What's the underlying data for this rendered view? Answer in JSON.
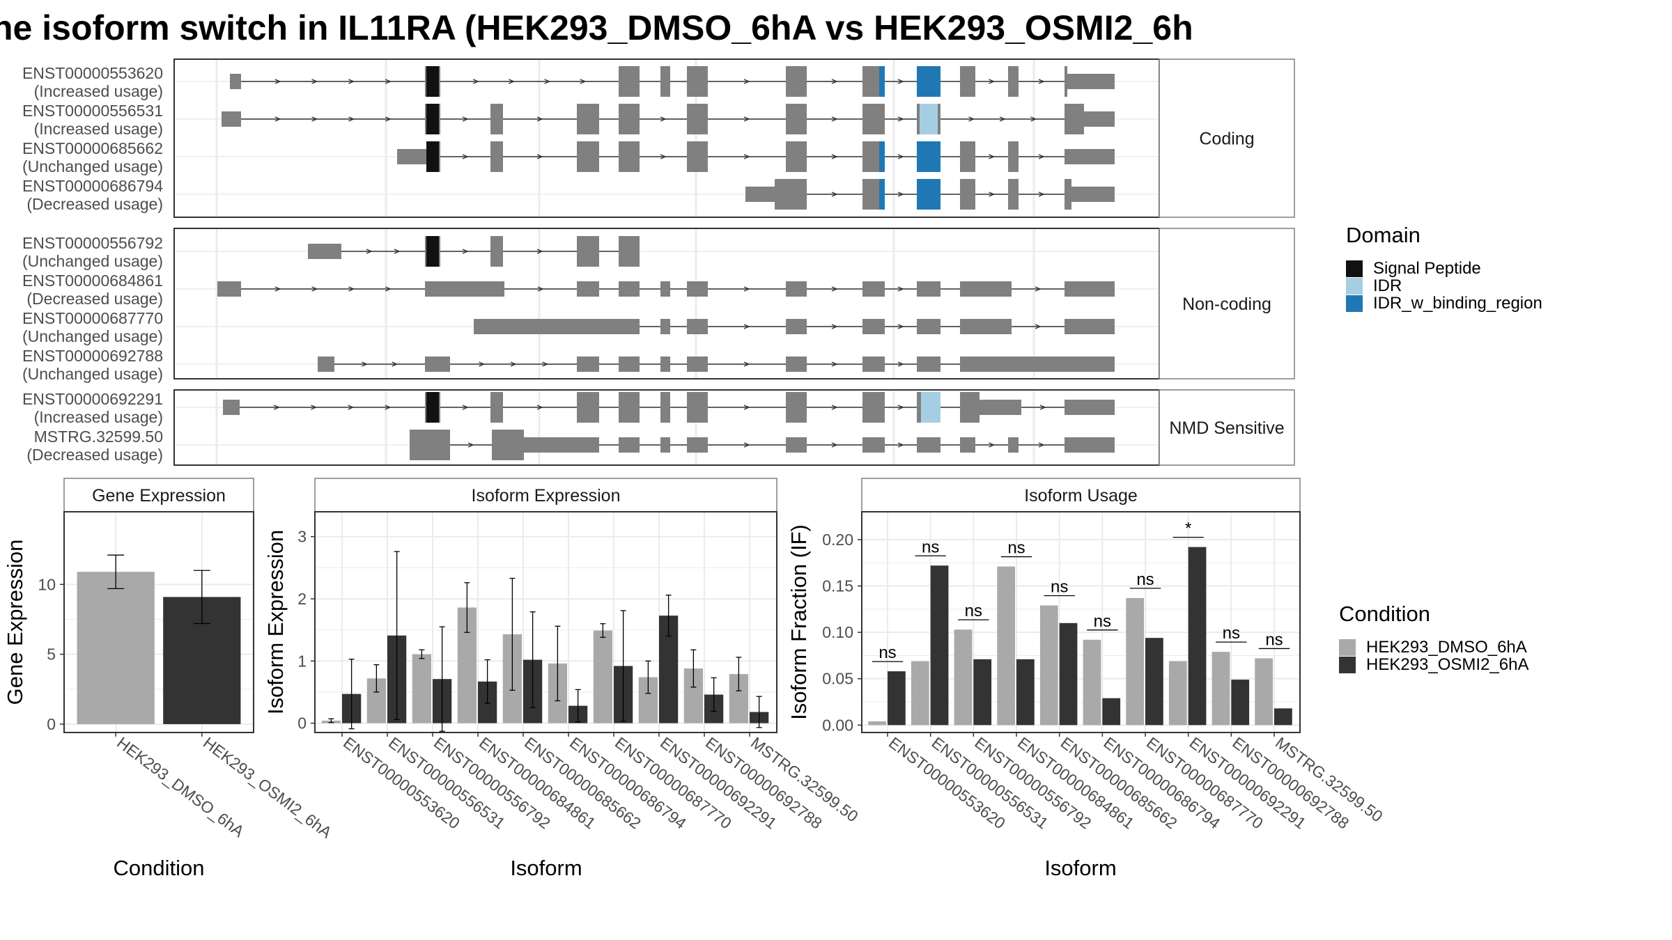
{
  "title": "he isoform switch in IL11RA (HEK293_DMSO_6hA vs HEK293_OSMI2_6h",
  "colors": {
    "exon": "#808080",
    "signal_peptide": "#111111",
    "idr": "#a6cee3",
    "idr_w_binding_region": "#1f78b4",
    "dmso": "#a9a9a9",
    "osmi2": "#333333",
    "grid": "#ebebeb",
    "strip_border": "#7f7f7f"
  },
  "legends": {
    "domain": {
      "title": "Domain",
      "items": [
        {
          "label": "Signal Peptide",
          "color_key": "signal_peptide"
        },
        {
          "label": "IDR",
          "color_key": "idr"
        },
        {
          "label": "IDR_w_binding_region",
          "color_key": "idr_w_binding_region"
        }
      ]
    },
    "condition": {
      "title": "Condition",
      "items": [
        {
          "label": "HEK293_DMSO_6hA",
          "color_key": "dmso"
        },
        {
          "label": "HEK293_OSMI2_6hA",
          "color_key": "osmi2"
        }
      ]
    }
  },
  "structure": {
    "panels": [
      {
        "strip": "Coding",
        "transcripts": [
          {
            "id": "ENST00000553620",
            "usage": "(Increased usage)"
          },
          {
            "id": "ENST00000556531",
            "usage": "(Increased usage)"
          },
          {
            "id": "ENST00000685662",
            "usage": "(Unchanged usage)"
          },
          {
            "id": "ENST00000686794",
            "usage": "(Decreased usage)"
          }
        ]
      },
      {
        "strip": "Non-coding",
        "transcripts": [
          {
            "id": "ENST00000556792",
            "usage": "(Unchanged usage)"
          },
          {
            "id": "ENST00000684861",
            "usage": "(Decreased usage)"
          },
          {
            "id": "ENST00000687770",
            "usage": "(Unchanged usage)"
          },
          {
            "id": "ENST00000692788",
            "usage": "(Unchanged usage)"
          }
        ]
      },
      {
        "strip": "NMD Sensitive",
        "transcripts": [
          {
            "id": "ENST00000692291",
            "usage": "(Increased usage)"
          },
          {
            "id": "MSTRG.32599.50",
            "usage": "(Decreased usage)"
          }
        ]
      }
    ]
  },
  "chart_data": [
    {
      "type": "bar",
      "strip": "Gene Expression",
      "xlabel": "Condition",
      "ylabel": "Gene Expression",
      "categories": [
        "HEK293_DMSO_6hA",
        "HEK293_OSMI2_6hA"
      ],
      "values": [
        10.9,
        9.1
      ],
      "errors": [
        1.2,
        1.9
      ],
      "ylim": [
        -0.6,
        15.2
      ],
      "yticks": [
        0,
        5,
        10
      ],
      "grid": true
    },
    {
      "type": "bar",
      "strip": "Isoform Expression",
      "xlabel": "Isoform",
      "ylabel": "Isoform Expression",
      "categories": [
        "ENST00000553620",
        "ENST00000556531",
        "ENST00000556792",
        "ENST00000684861",
        "ENST00000685662",
        "ENST00000686794",
        "ENST00000687770",
        "ENST00000692291",
        "ENST00000692788",
        "MSTRG.32599.50"
      ],
      "series": [
        {
          "name": "HEK293_DMSO_6hA",
          "color_key": "dmso",
          "values": [
            0.04,
            0.72,
            1.11,
            1.86,
            1.43,
            0.96,
            1.49,
            0.74,
            0.88,
            0.79
          ],
          "errors": [
            0.03,
            0.22,
            0.07,
            0.4,
            0.9,
            0.6,
            0.11,
            0.26,
            0.3,
            0.27
          ]
        },
        {
          "name": "HEK293_OSMI2_6hA",
          "color_key": "osmi2",
          "values": [
            0.47,
            1.41,
            0.71,
            0.67,
            1.02,
            0.28,
            0.92,
            1.73,
            0.46,
            0.18
          ],
          "errors": [
            0.56,
            1.35,
            0.84,
            0.35,
            0.77,
            0.26,
            0.89,
            0.33,
            0.27,
            0.25
          ]
        }
      ],
      "ylim": [
        -0.15,
        3.4
      ],
      "yticks": [
        0,
        1,
        2,
        3
      ],
      "grid": true
    },
    {
      "type": "bar",
      "strip": "Isoform Usage",
      "xlabel": "Isoform",
      "ylabel": "Isoform Fraction (IF)",
      "categories": [
        "ENST00000553620",
        "ENST00000556531",
        "ENST00000556792",
        "ENST00000684861",
        "ENST00000685662",
        "ENST00000686794",
        "ENST00000687770",
        "ENST00000692291",
        "ENST00000692788",
        "MSTRG.32599.50"
      ],
      "series": [
        {
          "name": "HEK293_DMSO_6hA",
          "color_key": "dmso",
          "values": [
            0.004,
            0.069,
            0.103,
            0.171,
            0.129,
            0.092,
            0.137,
            0.069,
            0.079,
            0.072
          ]
        },
        {
          "name": "HEK293_OSMI2_6hA",
          "color_key": "osmi2",
          "values": [
            0.058,
            0.172,
            0.071,
            0.071,
            0.11,
            0.029,
            0.094,
            0.192,
            0.049,
            0.018
          ]
        }
      ],
      "significance": [
        "ns",
        "ns",
        "ns",
        "ns",
        "ns",
        "ns",
        "ns",
        "*",
        "ns",
        "ns"
      ],
      "ylim": [
        -0.008,
        0.23
      ],
      "yticks": [
        0.0,
        0.05,
        0.1,
        0.15,
        0.2
      ],
      "ytick_labels": [
        "0.00",
        "0.05",
        "0.10",
        "0.15",
        "0.20"
      ],
      "grid": true
    }
  ]
}
